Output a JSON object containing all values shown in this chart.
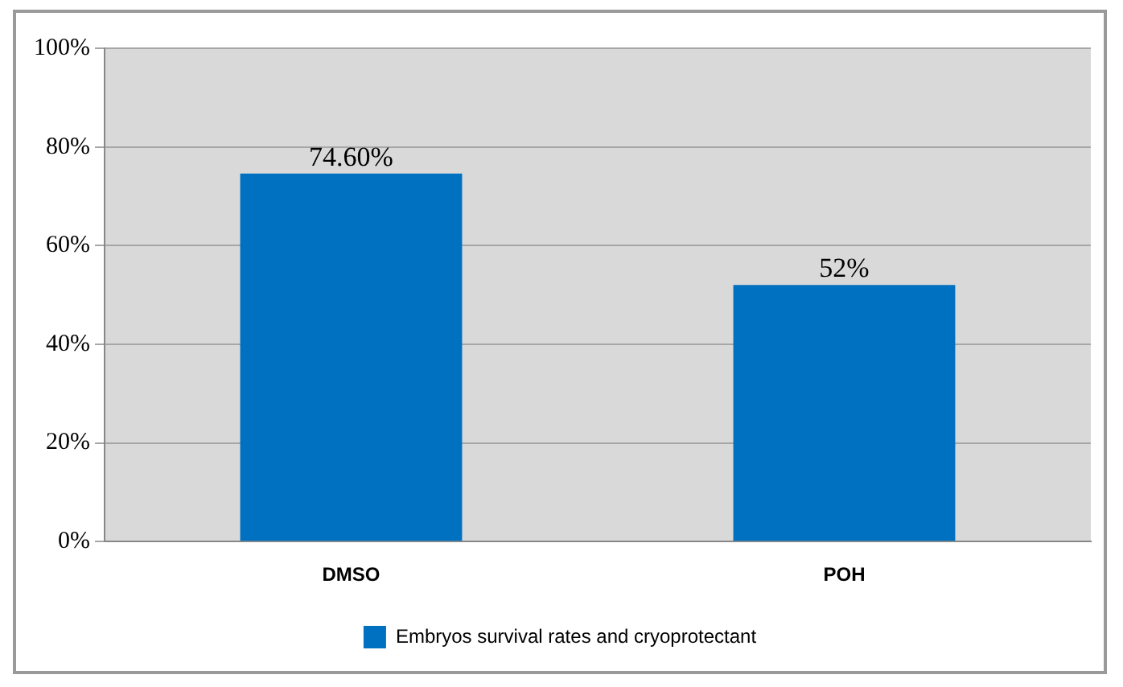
{
  "chart_data": {
    "type": "bar",
    "categories": [
      "DMSO",
      "POH"
    ],
    "series": [
      {
        "name": "Embryos survival rates and cryoprotectant",
        "color": "#0070c0",
        "values": [
          74.6,
          52
        ],
        "value_labels": [
          "74.60%",
          "52%"
        ]
      }
    ],
    "ylim": [
      0,
      100
    ],
    "yticks": [
      {
        "value": 0,
        "label": "0%"
      },
      {
        "value": 20,
        "label": "20%"
      },
      {
        "value": 40,
        "label": "40%"
      },
      {
        "value": 60,
        "label": "60%"
      },
      {
        "value": 80,
        "label": "80%"
      },
      {
        "value": 100,
        "label": "100%"
      }
    ],
    "grid": "y",
    "legend": "bottom"
  }
}
